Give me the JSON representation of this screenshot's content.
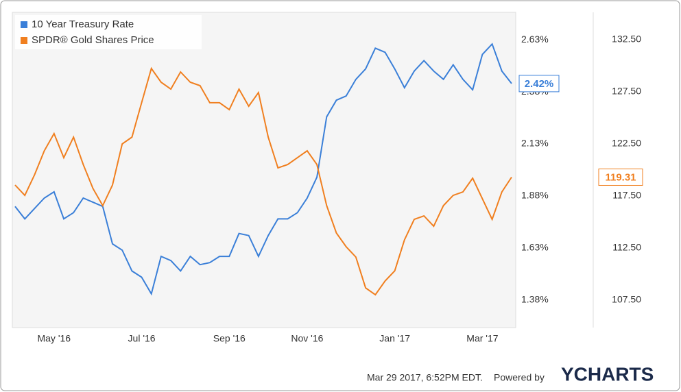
{
  "chart_data": {
    "type": "line",
    "categories": [
      null,
      null,
      null,
      null,
      "May '16",
      null,
      null,
      null,
      null,
      null,
      null,
      null,
      null,
      "Jul '16",
      null,
      null,
      null,
      null,
      null,
      null,
      null,
      null,
      "Sep '16",
      null,
      null,
      null,
      null,
      null,
      null,
      null,
      "Nov '16",
      null,
      null,
      null,
      null,
      null,
      null,
      null,
      null,
      "Jan '17",
      null,
      null,
      null,
      null,
      null,
      null,
      null,
      null,
      "Mar '17",
      null,
      null,
      null
    ],
    "series": [
      {
        "name": "10 Year Treasury Rate",
        "color": "#3a7fd8",
        "axis": "y",
        "values": [
          1.83,
          1.77,
          1.82,
          1.87,
          1.9,
          1.77,
          1.8,
          1.87,
          1.85,
          1.83,
          1.65,
          1.62,
          1.52,
          1.49,
          1.41,
          1.59,
          1.57,
          1.52,
          1.59,
          1.55,
          1.56,
          1.59,
          1.59,
          1.7,
          1.69,
          1.59,
          1.69,
          1.77,
          1.77,
          1.8,
          1.87,
          1.97,
          2.26,
          2.34,
          2.36,
          2.44,
          2.49,
          2.59,
          2.57,
          2.49,
          2.4,
          2.48,
          2.53,
          2.48,
          2.44,
          2.51,
          2.44,
          2.39,
          2.56,
          2.61,
          2.48,
          2.42
        ],
        "value_labels": [
          null,
          null,
          null,
          null,
          null,
          null,
          null,
          null,
          null,
          null,
          null,
          null,
          null,
          null,
          null,
          null,
          null,
          null,
          null,
          null,
          null,
          null,
          null,
          null,
          null,
          null,
          null,
          null,
          null,
          null,
          null,
          null,
          null,
          null,
          null,
          null,
          null,
          null,
          null,
          null,
          null,
          null,
          null,
          null,
          null,
          null,
          null,
          null,
          null,
          null,
          null,
          "2.42%"
        ]
      },
      {
        "name": "SPDR® Gold Shares Price",
        "color": "#f07f1f",
        "axis": "y2",
        "values": [
          118.55,
          117.56,
          119.54,
          121.84,
          123.49,
          121.18,
          123.15,
          120.52,
          118.22,
          116.58,
          118.55,
          122.5,
          123.15,
          126.45,
          129.74,
          128.42,
          127.76,
          129.41,
          128.42,
          128.09,
          126.45,
          126.45,
          125.79,
          127.76,
          126.12,
          127.43,
          123.15,
          120.2,
          120.52,
          121.18,
          121.84,
          120.52,
          116.58,
          113.95,
          112.63,
          111.64,
          108.68,
          108.02,
          109.34,
          110.32,
          113.29,
          115.26,
          115.59,
          114.6,
          116.58,
          117.56,
          117.89,
          119.21,
          117.23,
          115.26,
          117.89,
          119.31
        ]
      }
    ],
    "ylim": [
      1.248,
      2.762
    ],
    "yticks": [
      {
        "value": 1.38,
        "label": "1.38%"
      },
      {
        "value": 1.63,
        "label": "1.63%"
      },
      {
        "value": 1.88,
        "label": "1.88%"
      },
      {
        "value": 2.13,
        "label": "2.13%"
      },
      {
        "value": 2.38,
        "label": "2.38%"
      },
      {
        "value": 2.63,
        "label": "2.63%"
      }
    ],
    "y2lim": [
      104.87,
      135.13
    ],
    "y2ticks": [
      {
        "value": 107.5,
        "label": "107.50"
      },
      {
        "value": 112.5,
        "label": "112.50"
      },
      {
        "value": 117.5,
        "label": "117.50"
      },
      {
        "value": 122.5,
        "label": "122.50"
      },
      {
        "value": 127.5,
        "label": "127.50"
      },
      {
        "value": 132.5,
        "label": "132.50"
      }
    ],
    "grid": false,
    "legend": "top-left",
    "footer": {
      "timestamp": "Mar 29 2017, 6:52PM EDT.",
      "powered_by": "Powered by",
      "brand": "YCHARTS"
    }
  }
}
